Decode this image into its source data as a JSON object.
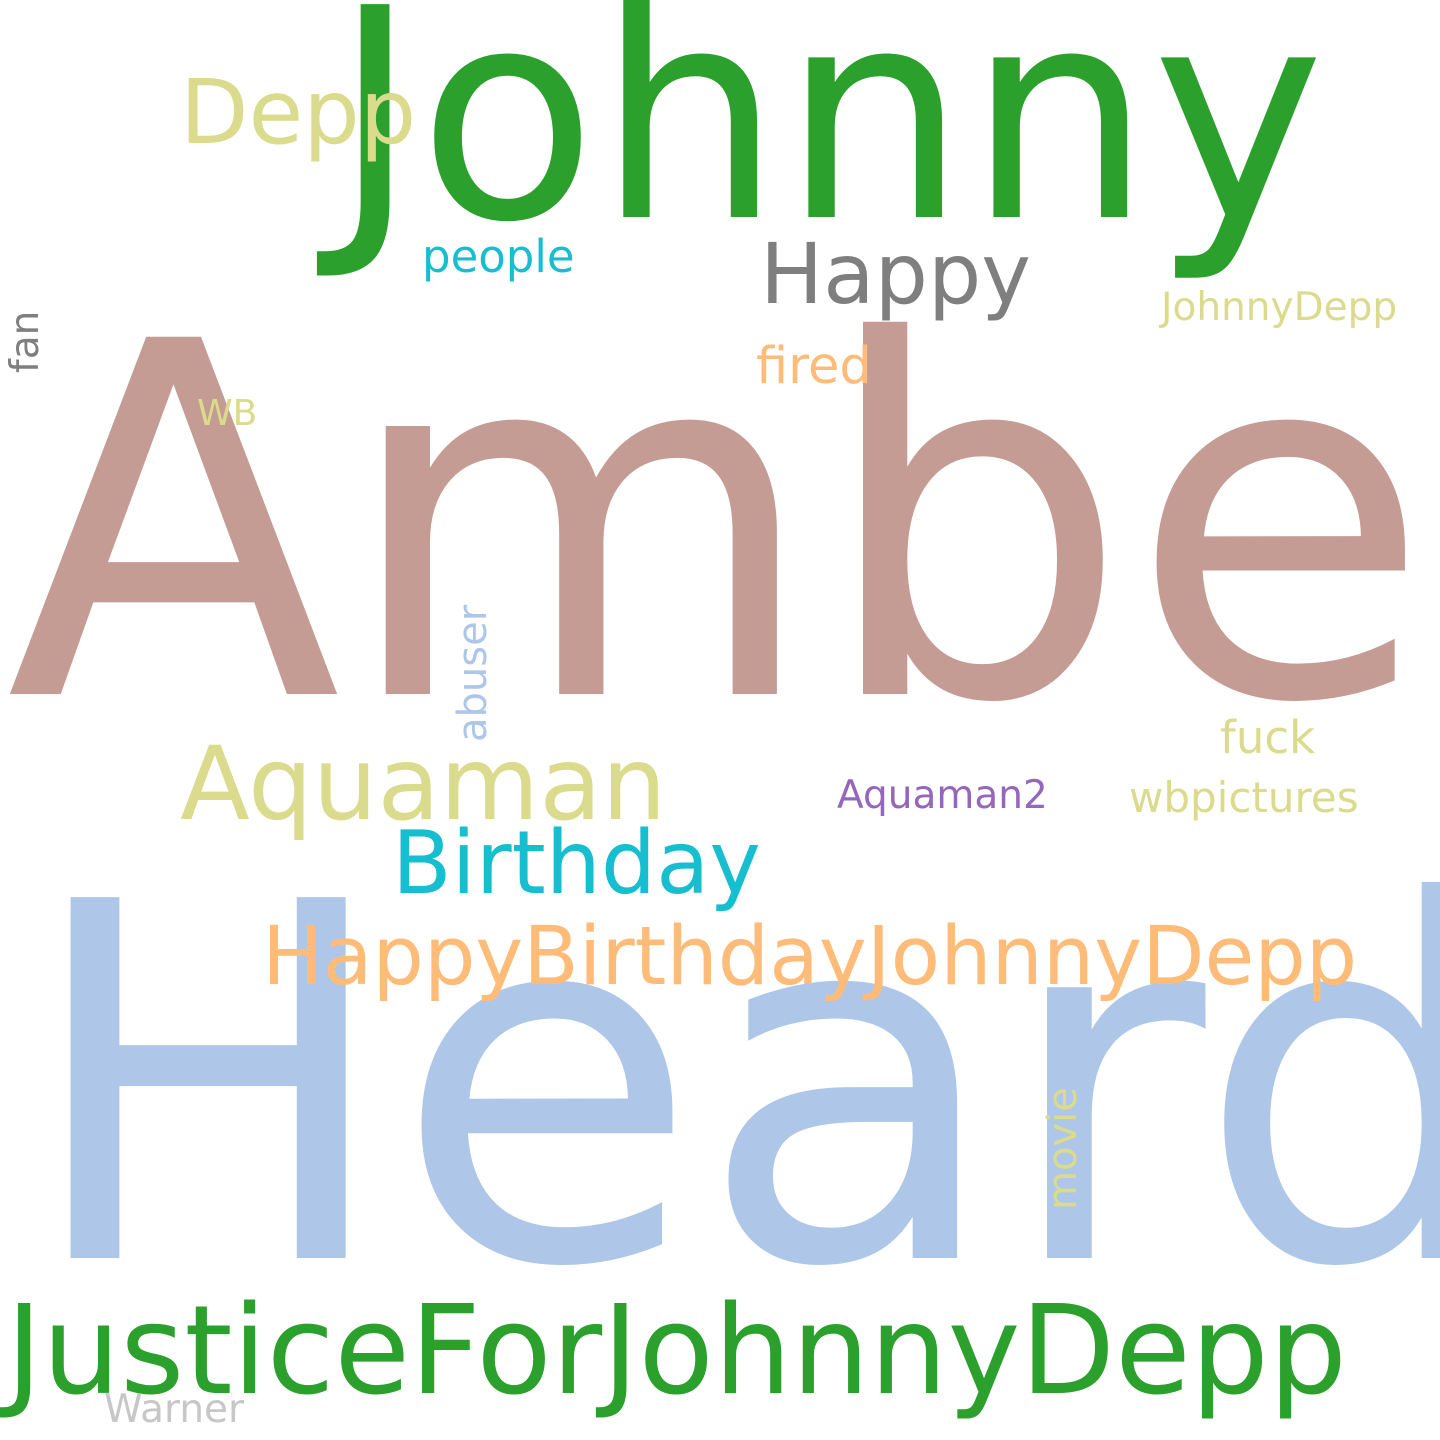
{
  "words": [
    {
      "id": "johnny",
      "text": "Johnny",
      "color": "#2ca02c"
    },
    {
      "id": "amber",
      "text": "Amber",
      "color": "#c49c94"
    },
    {
      "id": "heard",
      "text": "Heard",
      "color": "#aec7e8"
    },
    {
      "id": "justice",
      "text": "JusticeForJohnnyDepp",
      "color": "#2ca02c"
    },
    {
      "id": "hbd",
      "text": "HappyBirthdayJohnnyDepp",
      "color": "#ffbb78"
    },
    {
      "id": "aquaman",
      "text": "Aquaman",
      "color": "#dbdb8d"
    },
    {
      "id": "birthday",
      "text": "Birthday",
      "color": "#17becf"
    },
    {
      "id": "depp",
      "text": "Depp",
      "color": "#dbdb8d"
    },
    {
      "id": "happy",
      "text": "Happy",
      "color": "#7f7f7f"
    },
    {
      "id": "people",
      "text": "people",
      "color": "#17becf"
    },
    {
      "id": "johnnydepp",
      "text": "JohnnyDepp",
      "color": "#dbdb8d"
    },
    {
      "id": "fired",
      "text": "fired",
      "color": "#ffbb78"
    },
    {
      "id": "wb",
      "text": "WB",
      "color": "#dbdb8d"
    },
    {
      "id": "fan",
      "text": "fan",
      "color": "#7f7f7f"
    },
    {
      "id": "abuser",
      "text": "abuser",
      "color": "#aec7e8"
    },
    {
      "id": "fuck",
      "text": "fuck",
      "color": "#dbdb8d"
    },
    {
      "id": "aquaman2",
      "text": "Aquaman2",
      "color": "#9467bd"
    },
    {
      "id": "wbpictures",
      "text": "wbpictures",
      "color": "#dbdb8d"
    },
    {
      "id": "movie",
      "text": "movie",
      "color": "#dbdb8d"
    },
    {
      "id": "warner",
      "text": "Warner",
      "color": "#c7c7c7"
    }
  ]
}
